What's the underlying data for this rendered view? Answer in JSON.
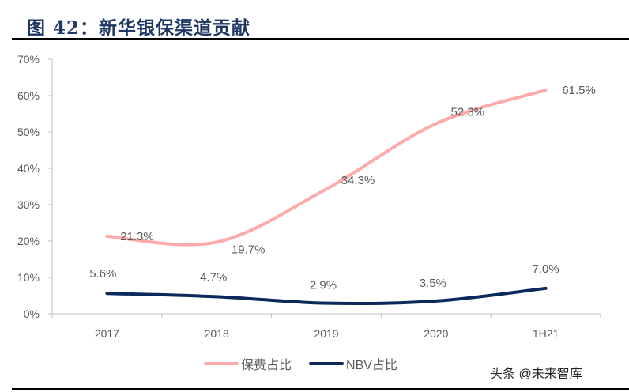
{
  "title": "图 42：新华银保渠道贡献",
  "watermark": "头条 @未来智库",
  "chart_data": {
    "type": "line",
    "categories": [
      "2017",
      "2018",
      "2019",
      "2020",
      "1H21"
    ],
    "ylim": [
      0,
      70
    ],
    "yticks": [
      "0%",
      "10%",
      "20%",
      "30%",
      "40%",
      "50%",
      "60%",
      "70%"
    ],
    "grid": false,
    "legend_position": "bottom",
    "series": [
      {
        "name": "保费占比",
        "color": "#ffaaaa",
        "values": [
          21.3,
          19.7,
          34.3,
          52.3,
          61.5
        ],
        "labels": [
          "21.3%",
          "19.7%",
          "34.3%",
          "52.3%",
          "61.5%"
        ]
      },
      {
        "name": "NBV占比",
        "color": "#0b2a5b",
        "values": [
          5.6,
          4.7,
          2.9,
          3.5,
          7.0
        ],
        "labels": [
          "5.6%",
          "4.7%",
          "2.9%",
          "3.5%",
          "7.0%"
        ]
      }
    ]
  }
}
